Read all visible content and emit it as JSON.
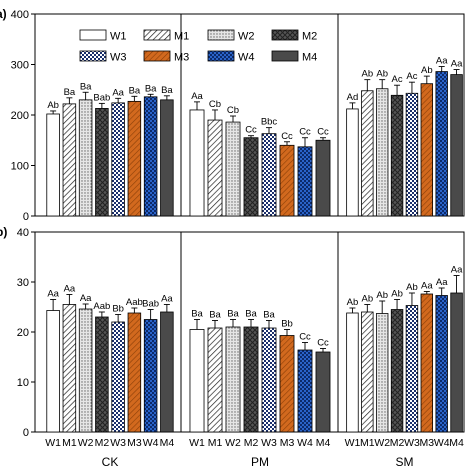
{
  "chart_data": [
    {
      "type": "bar",
      "panel_label": "a)",
      "groups": [
        "CK",
        "PM",
        "SM"
      ],
      "treatments": [
        "W1",
        "M1",
        "W2",
        "M2",
        "W3",
        "M3",
        "W4",
        "M4"
      ],
      "ylim": [
        0,
        400
      ],
      "yticks": [
        0,
        100,
        200,
        300,
        400
      ],
      "values": [
        [
          202,
          222,
          230,
          213,
          224,
          227,
          236,
          230
        ],
        [
          210,
          190,
          186,
          155,
          163,
          140,
          137,
          150
        ],
        [
          212,
          248,
          252,
          239,
          243,
          262,
          286,
          280
        ]
      ],
      "errors": [
        [
          6,
          12,
          15,
          10,
          9,
          10,
          5,
          8
        ],
        [
          16,
          20,
          12,
          4,
          12,
          7,
          18,
          5
        ],
        [
          12,
          22,
          18,
          20,
          22,
          15,
          10,
          10
        ]
      ],
      "labels": [
        [
          "Ab",
          "Ba",
          "Ba",
          "Bab",
          "Aa",
          "Ba",
          "Ba",
          "Ba"
        ],
        [
          "Aa",
          "Cb",
          "Cb",
          "Cc",
          "Bbc",
          "Cc",
          "Cc",
          "Cc"
        ],
        [
          "Ad",
          "Ab",
          "Ab",
          "Ac",
          "Ac",
          "Ab",
          "Aa",
          "Aa"
        ]
      ],
      "legend": [
        "W1",
        "M1",
        "W2",
        "M2",
        "W3",
        "M3",
        "W4",
        "M4"
      ],
      "legend_position": "top-left"
    },
    {
      "type": "bar",
      "panel_label": "b)",
      "groups": [
        "CK",
        "PM",
        "SM"
      ],
      "treatments": [
        "W1",
        "M1",
        "W2",
        "M2",
        "W3",
        "M3",
        "W4",
        "M4"
      ],
      "ylim": [
        0,
        40
      ],
      "yticks": [
        0,
        10,
        20,
        30,
        40
      ],
      "values": [
        [
          24.3,
          25.5,
          24.6,
          23.0,
          22.0,
          23.8,
          22.5,
          24.0
        ],
        [
          20.5,
          20.8,
          21.0,
          21.0,
          20.8,
          19.3,
          16.4,
          16.0
        ],
        [
          23.8,
          24.0,
          23.7,
          24.5,
          25.3,
          27.6,
          27.3,
          27.8
        ]
      ],
      "errors": [
        [
          2.2,
          2.0,
          1.0,
          1.0,
          1.5,
          1.0,
          2.0,
          1.5
        ],
        [
          2.0,
          1.5,
          1.5,
          1.5,
          1.5,
          1.2,
          1.5,
          0.7
        ],
        [
          1.0,
          1.5,
          2.5,
          2.0,
          2.5,
          0.5,
          1.5,
          3.5
        ]
      ],
      "labels": [
        [
          "Aa",
          "Aa",
          "Aa",
          "Aab",
          "Bb",
          "Aab",
          "Bab",
          "Aa"
        ],
        [
          "Ba",
          "Ba",
          "Ba",
          "Ba",
          "Ba",
          "Bb",
          "Cc",
          "Cc"
        ],
        [
          "Ab",
          "Ab",
          "Ab",
          "Ab",
          "Ab",
          "Aa",
          "Aa",
          "Aa"
        ]
      ]
    }
  ],
  "styles": {
    "W1": {
      "fill": "#ffffff",
      "pattern": "none"
    },
    "M1": {
      "fill": "#ffffff",
      "pattern": "diagonal-lines"
    },
    "W2": {
      "fill": "#d4d4d4",
      "pattern": "dots"
    },
    "M2": {
      "fill": "#555555",
      "pattern": "crosshatch"
    },
    "W3": {
      "fill": "#ffffff",
      "pattern": "checker"
    },
    "M3": {
      "fill": "#d2691e",
      "pattern": "diagonal-lines"
    },
    "W4": {
      "fill": "#1f4fa8",
      "pattern": "checker"
    },
    "M4": {
      "fill": "#4a4a4a",
      "pattern": "none"
    }
  }
}
